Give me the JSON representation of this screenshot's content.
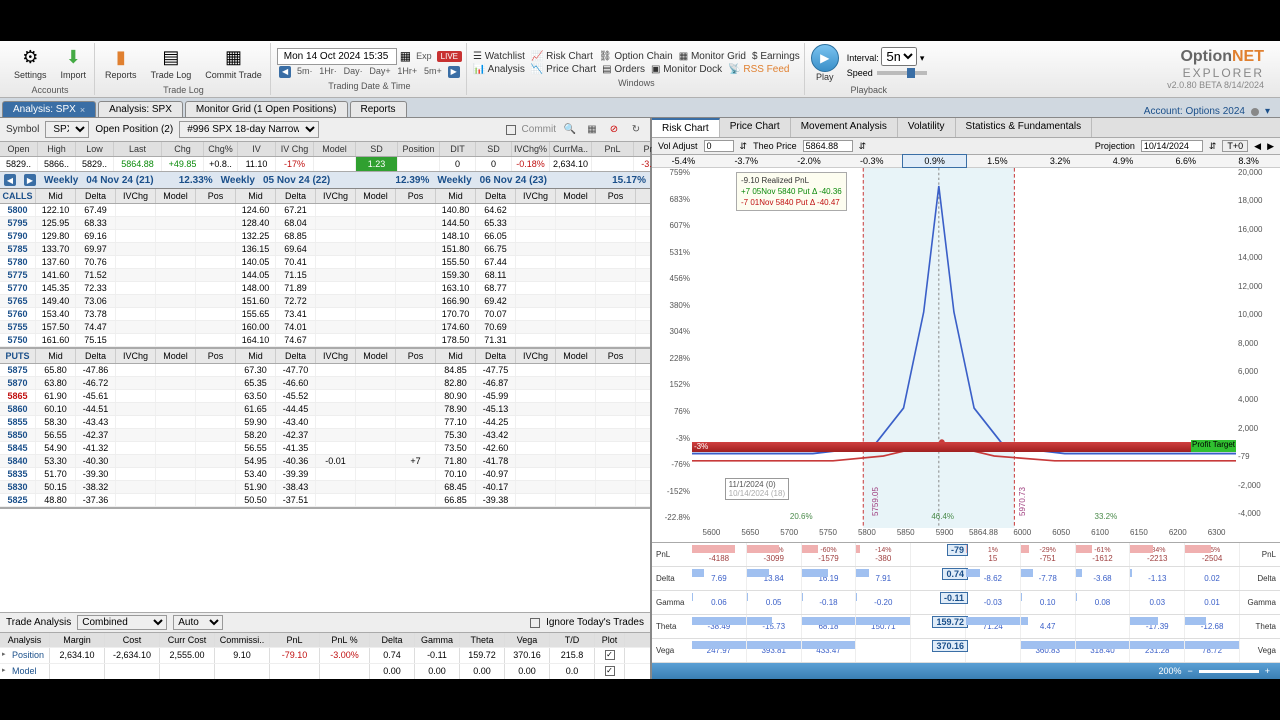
{
  "app": {
    "name": "OptionNET",
    "sub": "EXPLORER",
    "version": "v2.0.80 BETA 8/14/2024"
  },
  "toolbar": {
    "settings": "Settings",
    "accounts": "Accounts",
    "import": "Import",
    "reports_l": "Reports",
    "reports": "Reports",
    "reports_sub": "Reports",
    "tradelog": "Trade Log",
    "commit": "Commit Trade",
    "tradelog_sub": "Trade Log",
    "datetime": "Mon 14 Oct 2024 15:35",
    "exp": "Exp",
    "live": "LIVE",
    "tf": [
      "5m·",
      "1Hr·",
      "Day·",
      "Day+",
      "1Hr+",
      "5m+"
    ],
    "tdt_sub": "Trading Date & Time",
    "watchlist": "Watchlist",
    "riskchart": "Risk Chart",
    "optionchain": "Option Chain",
    "monitorgrid": "Monitor Grid",
    "earnings": "Earnings",
    "analysis": "Analysis",
    "pricechart": "Price Chart",
    "orders": "Orders",
    "monitordock": "Monitor Dock",
    "rssfeed": "RSS Feed",
    "windows_sub": "Windows",
    "play": "Play",
    "interval": "Interval:",
    "interval_v": "5m",
    "speed": "Speed",
    "playback_sub": "Playback"
  },
  "tabs": [
    {
      "label": "Analysis: SPX",
      "active": true,
      "close": true
    },
    {
      "label": "Analysis: SPX",
      "active": false,
      "close": false
    },
    {
      "label": "Monitor Grid (1 Open Positions)",
      "active": false,
      "close": false
    },
    {
      "label": "Reports",
      "active": false,
      "close": false
    }
  ],
  "account": "Account: Options 2024",
  "symbar": {
    "symbol_lbl": "Symbol",
    "symbol": "SPX",
    "openpos": "Open Position (2)",
    "pos_name": "#996 SPX 18-day Narrow Cal",
    "commit": "Commit"
  },
  "stats_hdr": [
    "Open",
    "High",
    "Low",
    "Last",
    "Chg",
    "Chg%",
    "IV",
    "IV Chg",
    "Model",
    "SD",
    "Position",
    "DIT",
    "SD",
    "IVChg%",
    "CurrMa..",
    "PnL",
    "PnL%"
  ],
  "stats_row": [
    "5829..",
    "5866..",
    "5829..",
    "5864.88",
    "+49.85",
    "+0.8..",
    "11.10",
    "-17%",
    "",
    "1.23",
    "",
    "0",
    "0",
    "-0.18%",
    "2,634.10",
    "",
    "-3.00%"
  ],
  "expiries": [
    {
      "wk": "Weekly",
      "dt": "04 Nov 24 (21)",
      "iv": "12.33%"
    },
    {
      "wk": "Weekly",
      "dt": "05 Nov 24 (22)",
      "iv": "12.39%"
    },
    {
      "wk": "Weekly",
      "dt": "06 Nov 24 (23)",
      "iv": "15.17%"
    }
  ],
  "chain_cols": [
    "Mid",
    "Delta",
    "IVChg",
    "Model",
    "Pos"
  ],
  "calls_lbl": "CALLS",
  "puts_lbl": "PUTS",
  "calls": [
    {
      "s": "5800",
      "c1": [
        "122.10",
        "67.49",
        "",
        "",
        ""
      ],
      "c2": [
        "124.60",
        "67.21",
        "",
        "",
        ""
      ],
      "c3": [
        "140.80",
        "64.62",
        "",
        "",
        ""
      ]
    },
    {
      "s": "5795",
      "c1": [
        "125.95",
        "68.33",
        "",
        "",
        ""
      ],
      "c2": [
        "128.40",
        "68.04",
        "",
        "",
        ""
      ],
      "c3": [
        "144.50",
        "65.33",
        "",
        "",
        ""
      ]
    },
    {
      "s": "5790",
      "c1": [
        "129.80",
        "69.16",
        "",
        "",
        ""
      ],
      "c2": [
        "132.25",
        "68.85",
        "",
        "",
        ""
      ],
      "c3": [
        "148.10",
        "66.05",
        "",
        "",
        ""
      ]
    },
    {
      "s": "5785",
      "c1": [
        "133.70",
        "69.97",
        "",
        "",
        ""
      ],
      "c2": [
        "136.15",
        "69.64",
        "",
        "",
        ""
      ],
      "c3": [
        "151.80",
        "66.75",
        "",
        "",
        ""
      ]
    },
    {
      "s": "5780",
      "c1": [
        "137.60",
        "70.76",
        "",
        "",
        ""
      ],
      "c2": [
        "140.05",
        "70.41",
        "",
        "",
        ""
      ],
      "c3": [
        "155.50",
        "67.44",
        "",
        "",
        ""
      ]
    },
    {
      "s": "5775",
      "c1": [
        "141.60",
        "71.52",
        "",
        "",
        ""
      ],
      "c2": [
        "144.05",
        "71.15",
        "",
        "",
        ""
      ],
      "c3": [
        "159.30",
        "68.11",
        "",
        "",
        ""
      ]
    },
    {
      "s": "5770",
      "c1": [
        "145.35",
        "72.33",
        "",
        "",
        ""
      ],
      "c2": [
        "148.00",
        "71.89",
        "",
        "",
        ""
      ],
      "c3": [
        "163.10",
        "68.77",
        "",
        "",
        ""
      ]
    },
    {
      "s": "5765",
      "c1": [
        "149.40",
        "73.06",
        "",
        "",
        ""
      ],
      "c2": [
        "151.60",
        "72.72",
        "",
        "",
        ""
      ],
      "c3": [
        "166.90",
        "69.42",
        "",
        "",
        ""
      ]
    },
    {
      "s": "5760",
      "c1": [
        "153.40",
        "73.78",
        "",
        "",
        ""
      ],
      "c2": [
        "155.65",
        "73.41",
        "",
        "",
        ""
      ],
      "c3": [
        "170.70",
        "70.07",
        "",
        "",
        ""
      ]
    },
    {
      "s": "5755",
      "c1": [
        "157.50",
        "74.47",
        "",
        "",
        ""
      ],
      "c2": [
        "160.00",
        "74.01",
        "",
        "",
        ""
      ],
      "c3": [
        "174.60",
        "70.69",
        "",
        "",
        ""
      ]
    },
    {
      "s": "5750",
      "c1": [
        "161.60",
        "75.15",
        "",
        "",
        ""
      ],
      "c2": [
        "164.10",
        "74.67",
        "",
        "",
        ""
      ],
      "c3": [
        "178.50",
        "71.31",
        "",
        "",
        ""
      ]
    }
  ],
  "puts": [
    {
      "s": "5875",
      "c1": [
        "65.80",
        "-47.86",
        "",
        "",
        ""
      ],
      "c2": [
        "67.30",
        "-47.70",
        "",
        "",
        ""
      ],
      "c3": [
        "84.85",
        "-47.75",
        "",
        "",
        ""
      ]
    },
    {
      "s": "5870",
      "c1": [
        "63.80",
        "-46.72",
        "",
        "",
        ""
      ],
      "c2": [
        "65.35",
        "-46.60",
        "",
        "",
        ""
      ],
      "c3": [
        "82.80",
        "-46.87",
        "",
        "",
        ""
      ]
    },
    {
      "s": "5865",
      "hot": true,
      "c1": [
        "61.90",
        "-45.61",
        "",
        "",
        ""
      ],
      "c2": [
        "63.50",
        "-45.52",
        "",
        "",
        ""
      ],
      "c3": [
        "80.90",
        "-45.99",
        "",
        "",
        ""
      ]
    },
    {
      "s": "5860",
      "c1": [
        "60.10",
        "-44.51",
        "",
        "",
        ""
      ],
      "c2": [
        "61.65",
        "-44.45",
        "",
        "",
        ""
      ],
      "c3": [
        "78.90",
        "-45.13",
        "",
        "",
        ""
      ]
    },
    {
      "s": "5855",
      "c1": [
        "58.30",
        "-43.43",
        "",
        "",
        ""
      ],
      "c2": [
        "59.90",
        "-43.40",
        "",
        "",
        ""
      ],
      "c3": [
        "77.10",
        "-44.25",
        "",
        "",
        ""
      ]
    },
    {
      "s": "5850",
      "c1": [
        "56.55",
        "-42.37",
        "",
        "",
        ""
      ],
      "c2": [
        "58.20",
        "-42.37",
        "",
        "",
        ""
      ],
      "c3": [
        "75.30",
        "-43.42",
        "",
        "",
        ""
      ]
    },
    {
      "s": "5845",
      "c1": [
        "54.90",
        "-41.32",
        "",
        "",
        ""
      ],
      "c2": [
        "56.55",
        "-41.35",
        "",
        "",
        ""
      ],
      "c3": [
        "73.50",
        "-42.60",
        "",
        "",
        ""
      ]
    },
    {
      "s": "5840",
      "c1": [
        "53.30",
        "-40.30",
        "",
        "",
        ""
      ],
      "c2": [
        "54.95",
        "-40.36",
        "-0.01",
        "",
        "+7"
      ],
      "c3": [
        "71.80",
        "-41.78",
        "",
        "",
        ""
      ]
    },
    {
      "s": "5835",
      "c1": [
        "51.70",
        "-39.30",
        "",
        "",
        ""
      ],
      "c2": [
        "53.40",
        "-39.39",
        "",
        "",
        ""
      ],
      "c3": [
        "70.10",
        "-40.97",
        "",
        "",
        ""
      ]
    },
    {
      "s": "5830",
      "c1": [
        "50.15",
        "-38.32",
        "",
        "",
        ""
      ],
      "c2": [
        "51.90",
        "-38.43",
        "",
        "",
        ""
      ],
      "c3": [
        "68.45",
        "-40.17",
        "",
        "",
        ""
      ]
    },
    {
      "s": "5825",
      "c1": [
        "48.80",
        "-37.36",
        "",
        "",
        ""
      ],
      "c2": [
        "50.50",
        "-37.51",
        "",
        "",
        ""
      ],
      "c3": [
        "66.85",
        "-39.38",
        "",
        "",
        ""
      ]
    }
  ],
  "ta": {
    "label": "Trade Analysis",
    "combined": "Combined",
    "auto": "Auto",
    "ignore": "Ignore Today's Trades",
    "hdr": [
      "Analysis",
      "Margin",
      "Cost",
      "Curr Cost",
      "Commissi..",
      "PnL",
      "PnL %",
      "Delta",
      "Gamma",
      "Theta",
      "Vega",
      "T/D",
      "Plot"
    ],
    "rows": [
      {
        "lbl": "Position",
        "v": [
          "2,634.10",
          "-2,634.10",
          "2,555.00",
          "9.10",
          "-79.10",
          "-3.00%",
          "0.74",
          "-0.11",
          "159.72",
          "370.16",
          "215.8"
        ],
        "ck": true
      },
      {
        "lbl": "Model",
        "v": [
          "",
          "",
          "",
          "",
          "",
          "",
          "0.00",
          "0.00",
          "0.00",
          "0.00",
          "0.0"
        ],
        "ck": true
      }
    ]
  },
  "rtabs": [
    "Risk Chart",
    "Price Chart",
    "Movement Analysis",
    "Volatility",
    "Statistics & Fundamentals"
  ],
  "rctrl": {
    "voladj": "Vol Adjust",
    "voladj_v": "0",
    "theoprice": "Theo Price",
    "theoprice_v": "5864.88",
    "projection": "Projection",
    "projection_v": "10/14/2024",
    "t0": "T+0"
  },
  "pct_row": [
    "-5.4%",
    "-3.7%",
    "-2.0%",
    "-0.3%",
    "0.9%",
    "1.5%",
    "3.2%",
    "4.9%",
    "6.6%",
    "8.3%"
  ],
  "yticks_l": [
    "759%",
    "683%",
    "607%",
    "531%",
    "456%",
    "380%",
    "304%",
    "228%",
    "152%",
    "76%",
    "-3%",
    "-76%",
    "-152%",
    "-22.8%"
  ],
  "yticks_r": [
    "20,000",
    "18,000",
    "16,000",
    "14,000",
    "12,000",
    "10,000",
    "8,000",
    "6,000",
    "4,000",
    "2,000",
    "-79",
    "-2,000",
    "-4,000"
  ],
  "xticks": [
    "5600",
    "5650",
    "5700",
    "5750",
    "5800",
    "5850",
    "5900",
    "5864.88",
    "6000",
    "6050",
    "6100",
    "6150",
    "6200",
    "6300"
  ],
  "legend": {
    "l1": "-9.10 Realized PnL",
    "l2": "+7 05Nov 5840 Put Δ  -40.36",
    "l3": "-7 01Nov 5840 Put Δ  -40.47"
  },
  "proj_box": {
    "l1": "11/1/2024 (0)",
    "l2": "10/14/2024 (18)"
  },
  "chart_labels": {
    "sd_l": "5759.05",
    "sd_r": "5970.73",
    "p1": "20.6%",
    "p2": "46.4%",
    "p3": "33.2%",
    "profit": "Profit Target"
  },
  "greeks_hdr_top": [
    "-159%",
    "-118%",
    "-60%",
    "-14%",
    "",
    "1%",
    "-29%",
    "-61%",
    "-84%",
    "-95%"
  ],
  "greeks_hdr_bot": [
    "-4188",
    "-3099",
    "-1579",
    "-380",
    "",
    "15",
    "-751",
    "-1612",
    "-2213",
    "-2504"
  ],
  "greeks": [
    {
      "name": "PnL",
      "cur": "-79",
      "cells": [
        "",
        "",
        "",
        "",
        "",
        "",
        "",
        "",
        "",
        ""
      ]
    },
    {
      "name": "Delta",
      "cur": "0.74",
      "cells": [
        "7.69",
        "13.84",
        "16.19",
        "7.91",
        "",
        "-8.62",
        "-7.78",
        "-3.68",
        "-1.13",
        "0.02"
      ]
    },
    {
      "name": "Gamma",
      "cur": "-0.11",
      "cells": [
        "0.06",
        "0.05",
        "-0.18",
        "-0.20",
        "",
        "-0.03",
        "0.10",
        "0.08",
        "0.03",
        "0.01"
      ]
    },
    {
      "name": "Theta",
      "cur": "159.72",
      "cells": [
        "-38.49",
        "-15.73",
        "68.18",
        "150.71",
        "",
        "71.24",
        "4.47",
        "",
        "-17.39",
        "-12.68"
      ]
    },
    {
      "name": "Vega",
      "cur": "370.16",
      "cells": [
        "247.97",
        "393.81",
        "433.47",
        "",
        "",
        "",
        "360.83",
        "318.40",
        "231.28",
        "78.72"
      ]
    }
  ],
  "zoom": "200%",
  "colors": {
    "curve_blue": "#3a5fc8",
    "t0_red": "#c83a3a",
    "band_shade": "#d8ecf4",
    "sd_line": "#c83a3a"
  }
}
